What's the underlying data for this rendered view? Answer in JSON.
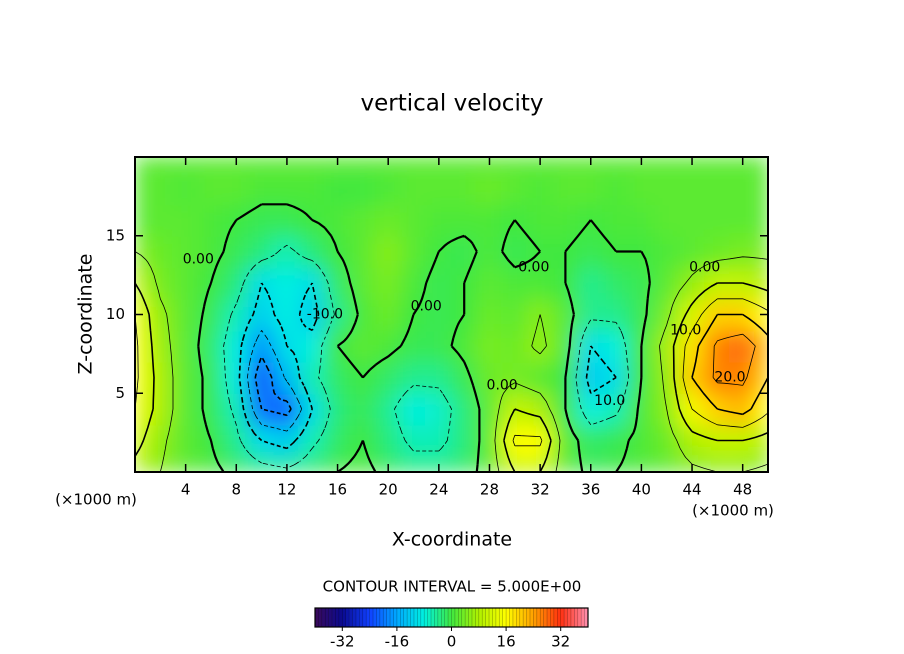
{
  "chart_data": {
    "type": "contour",
    "title": "vertical velocity",
    "xlabel": "X-coordinate",
    "ylabel": "Z-coordinate",
    "axis_unit_labels": [
      "(×1000 m)",
      "(×1000 m)"
    ],
    "contour_interval": 5,
    "contour_interval_label": "CONTOUR INTERVAL = 5.000E+00",
    "xlim": [
      0,
      50
    ],
    "ylim": [
      0,
      20
    ],
    "xticks": [
      4,
      8,
      12,
      16,
      20,
      24,
      28,
      32,
      36,
      40,
      44,
      48
    ],
    "yticks": [
      5,
      10,
      15
    ],
    "x": [
      0,
      2,
      4,
      6,
      8,
      10,
      12,
      14,
      16,
      18,
      20,
      22,
      24,
      26,
      28,
      30,
      32,
      34,
      36,
      38,
      40,
      42,
      44,
      46,
      48,
      50
    ],
    "y": [
      0,
      2,
      4,
      6,
      8,
      10,
      12,
      14,
      16,
      18,
      20
    ],
    "z": [
      [
        8,
        5,
        2,
        1,
        -1,
        -3,
        -4,
        -2,
        0,
        1,
        -1,
        -3,
        -3,
        -2,
        2,
        10,
        10,
        2,
        -1,
        0,
        1,
        2,
        4,
        5,
        5,
        4
      ],
      [
        12,
        6,
        2,
        0,
        -4,
        -10,
        -12,
        -6,
        -2,
        0,
        -3,
        -6,
        -6,
        -3,
        2,
        16,
        16,
        2,
        -2,
        -1,
        1,
        3,
        8,
        10,
        10,
        8
      ],
      [
        15,
        8,
        2,
        -1,
        -6,
        -20,
        -22,
        -10,
        -3,
        -1,
        -4,
        -8,
        -7,
        -3,
        2,
        10,
        8,
        0,
        -8,
        -6,
        1,
        5,
        15,
        20,
        22,
        16
      ],
      [
        16,
        8,
        2,
        -1,
        -8,
        -24,
        -14,
        -6,
        -2,
        0,
        -2,
        -4,
        -4,
        -1,
        3,
        4,
        2,
        0,
        -12,
        -10,
        0,
        6,
        20,
        26,
        26,
        20
      ],
      [
        16,
        7,
        2,
        -2,
        -8,
        -18,
        -10,
        -8,
        0,
        2,
        1,
        -1,
        -1,
        1,
        4,
        3,
        6,
        2,
        -10,
        -8,
        0,
        7,
        18,
        26,
        28,
        22
      ],
      [
        15,
        6,
        2,
        -1,
        -6,
        -12,
        -8,
        -12,
        -4,
        1,
        3,
        0,
        -1,
        0,
        3,
        2,
        5,
        2,
        -4,
        -4,
        -1,
        4,
        12,
        20,
        20,
        16
      ],
      [
        10,
        4,
        2,
        0,
        -3,
        -10,
        -8,
        -10,
        -2,
        2,
        4,
        1,
        -1,
        0,
        2,
        1,
        1,
        0,
        -4,
        -2,
        -1,
        2,
        6,
        10,
        10,
        8
      ],
      [
        5,
        3,
        2,
        1,
        -1,
        -3,
        -6,
        -3,
        0,
        2,
        5,
        2,
        0,
        -1,
        1,
        -1,
        0,
        0,
        -1,
        0,
        0,
        1,
        2,
        3,
        4,
        4
      ],
      [
        2,
        2,
        2,
        1,
        0,
        -1,
        -1,
        0,
        1,
        2,
        3,
        2,
        1,
        1,
        1,
        0,
        1,
        1,
        0,
        1,
        1,
        2,
        2,
        2,
        2,
        2
      ],
      [
        2,
        2,
        1,
        2,
        2,
        1,
        1,
        1,
        0,
        0,
        1,
        2,
        2,
        2,
        3,
        2,
        1,
        2,
        2,
        1,
        2,
        2,
        2,
        2,
        2,
        2
      ],
      [
        2,
        2,
        2,
        2,
        2,
        2,
        2,
        2,
        2,
        2,
        2,
        2,
        2,
        2,
        2,
        2,
        2,
        2,
        2,
        2,
        2,
        2,
        2,
        2,
        2,
        2
      ]
    ],
    "contour_labels": [
      {
        "text": "0.00",
        "x": 5,
        "y": 13.5
      },
      {
        "text": "-10.0",
        "x": 15,
        "y": 10
      },
      {
        "text": "0.00",
        "x": 23,
        "y": 10.5
      },
      {
        "text": "0.00",
        "x": 29,
        "y": 5.5
      },
      {
        "text": "0.00",
        "x": 31.5,
        "y": 13
      },
      {
        "text": "10.0",
        "x": 37.5,
        "y": 4.5
      },
      {
        "text": "0.00",
        "x": 45,
        "y": 13
      },
      {
        "text": "10.0",
        "x": 43.5,
        "y": 9
      },
      {
        "text": "20.0",
        "x": 47,
        "y": 6
      }
    ],
    "clim": [
      -40,
      40
    ],
    "colorbar_ticks": [
      -32,
      -16,
      0,
      16,
      32
    ],
    "colormap": [
      "#3a0a5a",
      "#0a0a90",
      "#1040ff",
      "#00a8ff",
      "#00f0e0",
      "#40e840",
      "#b0f000",
      "#ffff00",
      "#ffa000",
      "#ff3010",
      "#ff90b0"
    ]
  }
}
